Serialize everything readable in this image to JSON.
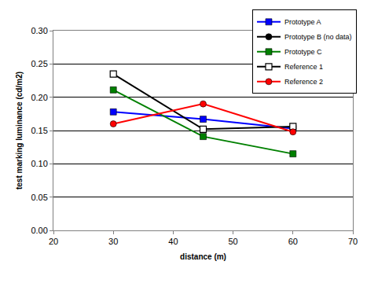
{
  "chart_data": {
    "type": "line",
    "x_label": "distance (m)",
    "y_label": "test marking luminance (cd/m2)",
    "x": [
      30,
      45,
      60
    ],
    "series": [
      {
        "name": "Prototype A",
        "color": "#0000ff",
        "marker": "square",
        "values": [
          0.178,
          0.167,
          0.153
        ]
      },
      {
        "name": "Prototype B (no data)",
        "color": "#000000",
        "marker": "circle",
        "values": [
          null,
          null,
          null
        ]
      },
      {
        "name": "Prototype C",
        "color": "#008000",
        "marker": "square",
        "values": [
          0.211,
          0.141,
          0.115
        ]
      },
      {
        "name": "Reference 1",
        "color": "#000000",
        "marker": "square-open",
        "values": [
          0.235,
          0.152,
          0.156
        ]
      },
      {
        "name": "Reference 2",
        "color": "#ff0000",
        "marker": "circle",
        "values": [
          0.16,
          0.19,
          0.148
        ]
      }
    ],
    "xlim": [
      20,
      70
    ],
    "xticks": [
      20,
      30,
      40,
      50,
      60,
      70
    ],
    "ylim": [
      0,
      0.3
    ],
    "yticks": [
      {
        "value": 0,
        "label": "0.00"
      },
      0.05,
      {
        "value": 0.1,
        "label": "0.10"
      },
      0.15,
      {
        "value": 0.2,
        "label": "0.20"
      },
      0.25,
      {
        "value": 0.3,
        "label": "0.30"
      }
    ],
    "grid": true,
    "legend": "top right"
  }
}
